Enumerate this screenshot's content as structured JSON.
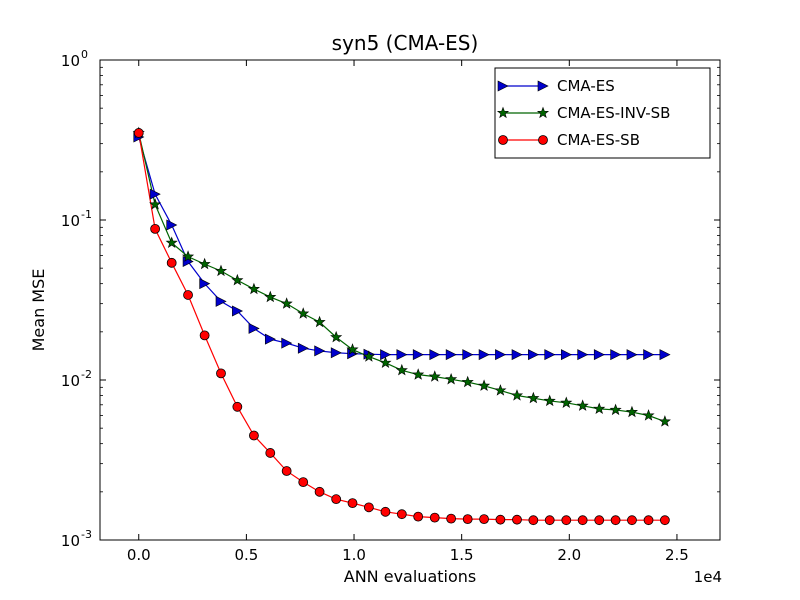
{
  "chart_data": {
    "type": "line",
    "title": "syn5 (CMA-ES)",
    "xlabel": "ANN evaluations",
    "ylabel": "Mean MSE",
    "x_offset_label": "1e4",
    "x_scale": 10000,
    "xlim": [
      -0.18,
      2.7
    ],
    "ylim": [
      0.001,
      1
    ],
    "yscale": "log",
    "x_ticks": [
      0.0,
      0.5,
      1.0,
      1.5,
      2.0,
      2.5
    ],
    "x_tick_labels": [
      "0.0",
      "0.5",
      "1.0",
      "1.5",
      "2.0",
      "2.5"
    ],
    "y_ticks": [
      1,
      0.1,
      0.01,
      0.001
    ],
    "y_tick_bases": [
      "10",
      "10",
      "10",
      "10"
    ],
    "y_tick_exponents": [
      "0",
      "-1",
      "-2",
      "-3"
    ],
    "legend_position": "top-right",
    "series": [
      {
        "name": "CMA-ES",
        "color": "#0000cc",
        "marker": "triangle-right",
        "x": [
          0.0,
          0.076,
          0.153,
          0.229,
          0.306,
          0.382,
          0.458,
          0.535,
          0.611,
          0.687,
          0.764,
          0.84,
          0.917,
          0.993,
          1.069,
          1.146,
          1.222,
          1.298,
          1.375,
          1.451,
          1.528,
          1.604,
          1.68,
          1.757,
          1.833,
          1.909,
          1.986,
          2.062,
          2.139,
          2.215,
          2.291,
          2.368,
          2.444
        ],
        "y": [
          0.33,
          0.145,
          0.093,
          0.055,
          0.04,
          0.031,
          0.027,
          0.021,
          0.018,
          0.017,
          0.0158,
          0.0152,
          0.0148,
          0.0146,
          0.0145,
          0.0144,
          0.0144,
          0.0144,
          0.0144,
          0.0144,
          0.0144,
          0.0144,
          0.0144,
          0.0144,
          0.0144,
          0.0144,
          0.0144,
          0.0144,
          0.0144,
          0.0144,
          0.0144,
          0.0144,
          0.0144
        ]
      },
      {
        "name": "CMA-ES-INV-SB",
        "color": "#006400",
        "marker": "star",
        "x": [
          0.0,
          0.076,
          0.153,
          0.229,
          0.306,
          0.382,
          0.458,
          0.535,
          0.611,
          0.687,
          0.764,
          0.84,
          0.917,
          0.993,
          1.069,
          1.146,
          1.222,
          1.298,
          1.375,
          1.451,
          1.528,
          1.604,
          1.68,
          1.757,
          1.833,
          1.909,
          1.986,
          2.062,
          2.139,
          2.215,
          2.291,
          2.368,
          2.444
        ],
        "y": [
          0.35,
          0.125,
          0.072,
          0.059,
          0.053,
          0.048,
          0.042,
          0.037,
          0.033,
          0.03,
          0.026,
          0.023,
          0.0185,
          0.0155,
          0.014,
          0.0128,
          0.0115,
          0.0108,
          0.0105,
          0.0101,
          0.0097,
          0.0092,
          0.0086,
          0.008,
          0.0077,
          0.0074,
          0.0072,
          0.0069,
          0.0066,
          0.0065,
          0.0063,
          0.006,
          0.0055
        ]
      },
      {
        "name": "CMA-ES-SB",
        "color": "#ff0000",
        "marker": "circle",
        "x": [
          0.0,
          0.076,
          0.153,
          0.229,
          0.306,
          0.382,
          0.458,
          0.535,
          0.611,
          0.687,
          0.764,
          0.84,
          0.917,
          0.993,
          1.069,
          1.146,
          1.222,
          1.298,
          1.375,
          1.451,
          1.528,
          1.604,
          1.68,
          1.757,
          1.833,
          1.909,
          1.986,
          2.062,
          2.139,
          2.215,
          2.291,
          2.368,
          2.444
        ],
        "y": [
          0.35,
          0.088,
          0.054,
          0.034,
          0.019,
          0.011,
          0.0068,
          0.0045,
          0.0035,
          0.0027,
          0.0023,
          0.002,
          0.0018,
          0.0017,
          0.0016,
          0.0015,
          0.00145,
          0.0014,
          0.00138,
          0.00136,
          0.00135,
          0.00135,
          0.00134,
          0.00134,
          0.00133,
          0.00133,
          0.00133,
          0.00133,
          0.00133,
          0.00133,
          0.00133,
          0.00133,
          0.00133
        ]
      }
    ]
  }
}
